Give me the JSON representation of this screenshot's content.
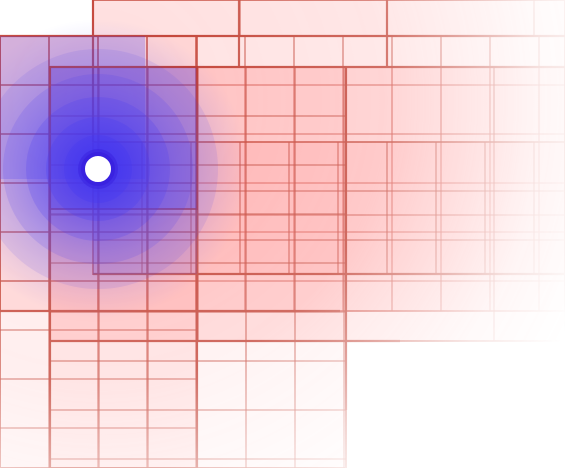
{
  "colors": {
    "background": "#ffffff",
    "grid_fill": "#ff6b6b",
    "grid_line": "#c0392b",
    "glow": "#3b2ff0",
    "pointer_fill": "#ffffff",
    "pointer_ring": "#3a22e0"
  },
  "icons": {
    "pointer": "cursor-dot-icon"
  }
}
